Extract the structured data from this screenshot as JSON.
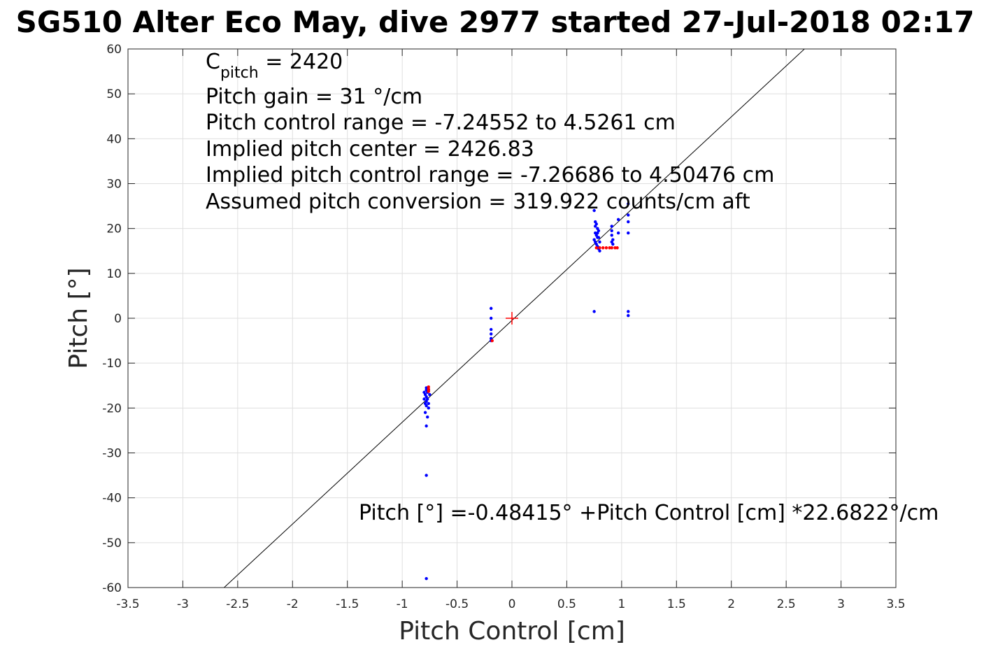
{
  "chart_data": {
    "type": "scatter",
    "title": "SG510 Alter Eco May, dive 2977 started 27-Jul-2018 02:17",
    "xlabel": "Pitch Control [cm]",
    "ylabel": "Pitch [°]",
    "xlim": [
      -3.5,
      3.5
    ],
    "ylim": [
      -60,
      60
    ],
    "xticks": [
      -3.5,
      -3,
      -2.5,
      -2,
      -1.5,
      -1,
      -0.5,
      0,
      0.5,
      1,
      1.5,
      2,
      2.5,
      3,
      3.5
    ],
    "yticks": [
      -60,
      -50,
      -40,
      -30,
      -20,
      -10,
      0,
      10,
      20,
      30,
      40,
      50,
      60
    ],
    "grid": true,
    "annotations": {
      "c_pitch_base": "C",
      "c_pitch_sub": "pitch",
      "c_pitch_value": " = 2420",
      "pitch_gain": "Pitch gain = 31 °/cm",
      "control_range": "Pitch control range = -7.24552 to 4.5261 cm",
      "implied_center": "Implied pitch center = 2426.83",
      "implied_range": "Implied pitch control range = -7.26686 to 4.50476 cm",
      "conversion": "Assumed pitch conversion = 319.922 counts/cm aft",
      "fit_equation": "Pitch [°] =-0.48415° +Pitch Control [cm] *22.6822°/cm"
    },
    "fit_line": {
      "intercept": -0.48415,
      "slope": 22.6822,
      "color": "#000000"
    },
    "center_marker": {
      "x": 0,
      "y": 0,
      "color": "#ff0000"
    },
    "series": [
      {
        "color": "#0000ff",
        "points": [
          [
            -0.78,
            -15.5
          ],
          [
            -0.78,
            -16.0
          ],
          [
            -0.77,
            -16.5
          ],
          [
            -0.79,
            -17.0
          ],
          [
            -0.78,
            -17.5
          ],
          [
            -0.77,
            -18.0
          ],
          [
            -0.78,
            -18.5
          ],
          [
            -0.79,
            -19.0
          ],
          [
            -0.78,
            -19.5
          ],
          [
            -0.76,
            -20.0
          ],
          [
            -0.79,
            -21.0
          ],
          [
            -0.77,
            -22.0
          ],
          [
            -0.78,
            -24.0
          ],
          [
            -0.78,
            -35.0
          ],
          [
            -0.78,
            -58.0
          ],
          [
            -0.75,
            -17.0
          ],
          [
            -0.76,
            -19.0
          ],
          [
            -0.8,
            -18.0
          ],
          [
            -0.8,
            -16.5
          ],
          [
            -0.76,
            -16.0
          ],
          [
            -0.19,
            2.2
          ],
          [
            -0.19,
            0.0
          ],
          [
            -0.19,
            -2.5
          ],
          [
            -0.19,
            -3.5
          ],
          [
            -0.19,
            -4.5
          ],
          [
            -0.19,
            -5.0
          ],
          [
            0.75,
            24.0
          ],
          [
            0.76,
            21.5
          ],
          [
            0.77,
            21.0
          ],
          [
            0.76,
            20.5
          ],
          [
            0.78,
            20.0
          ],
          [
            0.79,
            19.5
          ],
          [
            0.76,
            19.0
          ],
          [
            0.77,
            18.5
          ],
          [
            0.78,
            18.0
          ],
          [
            0.75,
            17.5
          ],
          [
            0.76,
            17.0
          ],
          [
            0.77,
            16.5
          ],
          [
            0.78,
            16.0
          ],
          [
            0.79,
            15.5
          ],
          [
            0.8,
            15.0
          ],
          [
            0.78,
            19.0
          ],
          [
            0.79,
            18.0
          ],
          [
            0.8,
            17.0
          ],
          [
            0.75,
            1.5
          ],
          [
            0.91,
            20.5
          ],
          [
            0.91,
            19.5
          ],
          [
            0.91,
            18.5
          ],
          [
            0.92,
            17.5
          ],
          [
            0.91,
            17.0
          ],
          [
            0.92,
            16.5
          ],
          [
            0.97,
            22.0
          ],
          [
            0.97,
            19.0
          ],
          [
            1.06,
            25.5
          ],
          [
            1.06,
            23.0
          ],
          [
            1.06,
            21.5
          ],
          [
            1.06,
            19.0
          ],
          [
            1.06,
            1.5
          ],
          [
            1.06,
            0.6
          ]
        ]
      },
      {
        "color": "#ff0000",
        "points": [
          [
            -0.76,
            -15.3
          ],
          [
            -0.76,
            -15.8
          ],
          [
            -0.76,
            -16.3
          ],
          [
            -0.18,
            -5.0
          ],
          [
            0.77,
            15.7
          ],
          [
            0.8,
            15.7
          ],
          [
            0.83,
            15.7
          ],
          [
            0.86,
            15.7
          ],
          [
            0.89,
            15.7
          ],
          [
            0.91,
            15.7
          ],
          [
            0.94,
            15.7
          ],
          [
            0.96,
            15.7
          ]
        ]
      }
    ]
  }
}
